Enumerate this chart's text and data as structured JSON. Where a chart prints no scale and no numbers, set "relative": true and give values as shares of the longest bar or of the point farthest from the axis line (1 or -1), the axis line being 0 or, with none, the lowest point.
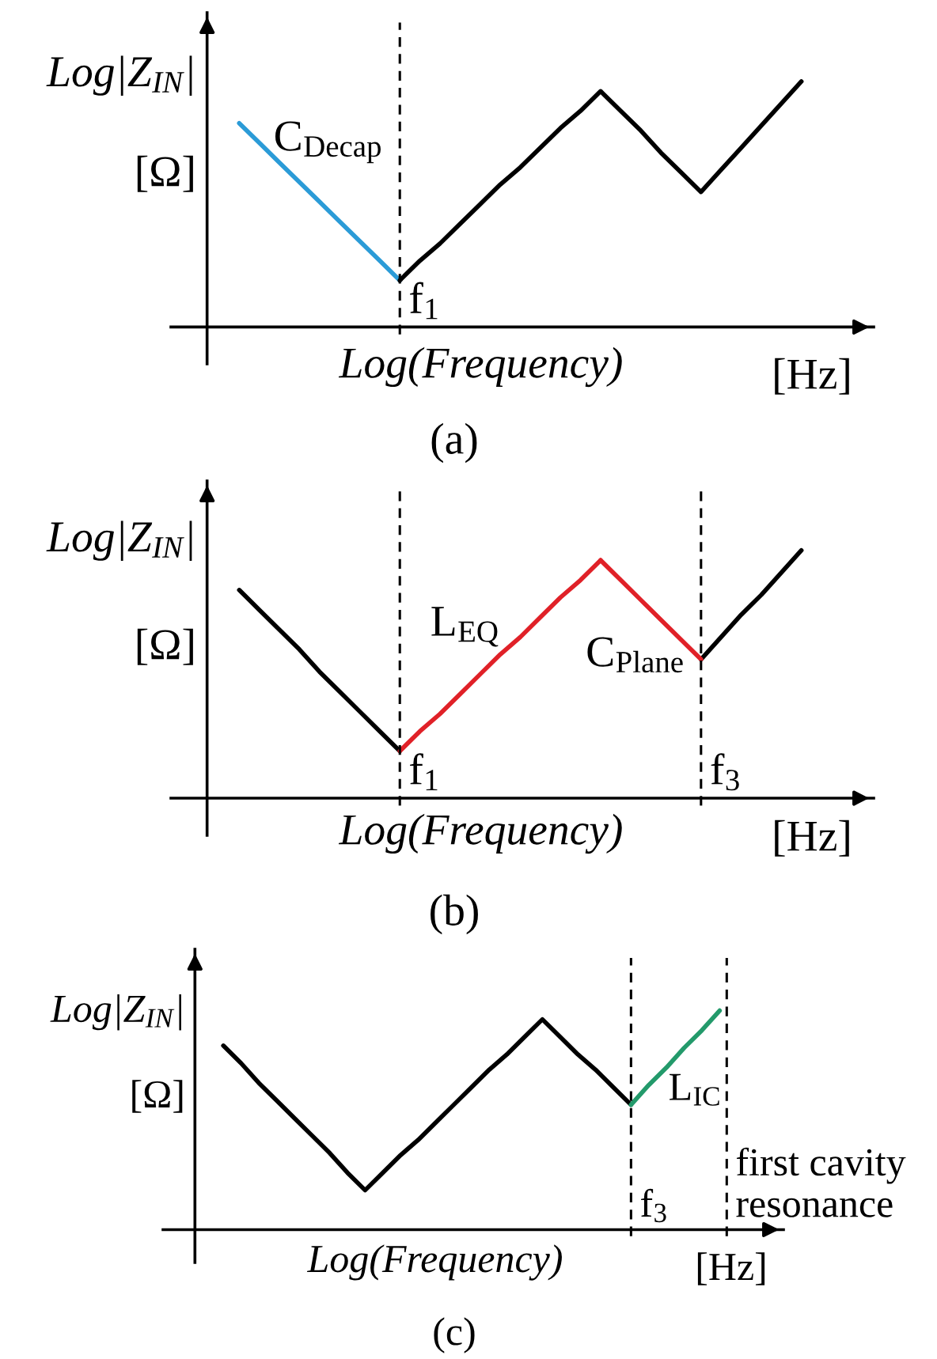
{
  "chart_data": [
    {
      "type": "line",
      "title": "(a)",
      "xlabel": "Log(Frequency)",
      "ylabel": "Log|Z$_{IN}$|\n[Ω]",
      "annotations": [
        "[Hz]",
        "f$_{1}$"
      ],
      "relative": true,
      "categories": [
        null,
        null,
        null,
        null,
        null,
        null,
        null,
        null,
        null,
        null,
        null,
        null,
        null,
        null,
        null,
        null,
        null,
        null,
        null,
        null,
        null,
        null,
        null,
        null,
        null,
        null,
        null,
        null,
        null
      ],
      "series": [
        {
          "name": "C$_{Decap}$",
          "color": "#2b9bd7",
          "values": [
            0.83,
            0.75,
            0.67,
            0.59,
            0.51,
            0.43,
            0.35,
            0.27,
            0.19,
            null,
            null,
            null,
            null,
            null,
            null,
            null,
            null,
            null,
            null,
            null,
            null,
            null,
            null,
            null,
            null,
            null,
            null,
            null,
            null
          ]
        },
        {
          "color": "#000000",
          "values": [
            null,
            null,
            null,
            null,
            null,
            null,
            null,
            null,
            0.19,
            0.27,
            0.34,
            0.42,
            0.5,
            0.58,
            0.65,
            0.73,
            0.81,
            0.88,
            0.96,
            0.88,
            0.8,
            0.71,
            0.63,
            0.55,
            0.64,
            0.73,
            0.82,
            0.91,
            1.0
          ]
        }
      ]
    },
    {
      "type": "line",
      "title": "(b)",
      "xlabel": "Log(Frequency)",
      "ylabel": "Log|Z$_{IN}$|\n[Ω]",
      "annotations": [
        "[Hz]",
        "f$_{1}$",
        "f$_{3}$"
      ],
      "relative": true,
      "categories": [
        null,
        null,
        null,
        null,
        null,
        null,
        null,
        null,
        null,
        null,
        null,
        null,
        null,
        null,
        null,
        null,
        null,
        null,
        null,
        null,
        null,
        null,
        null,
        null,
        null,
        null,
        null,
        null,
        null
      ],
      "series": [
        {
          "color": "#000000",
          "values": [
            0.84,
            0.76,
            0.68,
            0.6,
            0.51,
            0.43,
            0.35,
            0.27,
            0.19,
            null,
            null,
            null,
            null,
            null,
            null,
            null,
            null,
            null,
            null,
            null,
            null,
            null,
            null,
            0.56,
            0.65,
            0.74,
            0.82,
            0.91,
            1.0
          ]
        },
        {
          "name": "L$_{EQ}$",
          "color": "#e02128",
          "values": [
            null,
            null,
            null,
            null,
            null,
            null,
            null,
            null,
            0.19,
            0.27,
            0.34,
            0.42,
            0.5,
            0.58,
            0.65,
            0.73,
            0.81,
            0.88,
            0.96,
            null,
            null,
            null,
            null,
            null,
            null,
            null,
            null,
            null,
            null
          ]
        },
        {
          "name": "C$_{Plane}$",
          "color": "#e02128",
          "values": [
            null,
            null,
            null,
            null,
            null,
            null,
            null,
            null,
            null,
            null,
            null,
            null,
            null,
            null,
            null,
            null,
            null,
            null,
            0.96,
            0.88,
            0.8,
            0.72,
            0.64,
            0.56,
            null,
            null,
            null,
            null,
            null
          ]
        }
      ]
    },
    {
      "type": "line",
      "title": "(c)",
      "xlabel": "Log(Frequency)",
      "ylabel": "Log|Z$_{IN}$|\n[Ω]",
      "annotations": [
        "[Hz]",
        "f$_{3}$",
        "first cavity resonance"
      ],
      "relative": true,
      "categories": [
        null,
        null,
        null,
        null,
        null,
        null,
        null,
        null,
        null,
        null,
        null,
        null,
        null,
        null,
        null,
        null,
        null,
        null,
        null,
        null,
        null,
        null,
        null,
        null,
        null,
        null,
        null,
        null,
        null
      ],
      "series": [
        {
          "color": "#000000",
          "values": [
            0.84,
            0.76,
            0.67,
            0.59,
            0.51,
            0.43,
            0.35,
            0.26,
            0.18,
            0.26,
            0.34,
            0.41,
            0.49,
            0.57,
            0.65,
            0.73,
            0.8,
            0.88,
            0.96,
            0.88,
            0.8,
            0.73,
            0.65,
            0.57,
            null,
            null,
            null,
            null,
            null
          ]
        },
        {
          "name": "L$_{IC}$",
          "color": "#239a6b",
          "values": [
            null,
            null,
            null,
            null,
            null,
            null,
            null,
            null,
            null,
            null,
            null,
            null,
            null,
            null,
            null,
            null,
            null,
            null,
            null,
            null,
            null,
            null,
            null,
            0.57,
            0.66,
            0.74,
            0.83,
            0.91,
            1.0
          ]
        }
      ]
    }
  ]
}
